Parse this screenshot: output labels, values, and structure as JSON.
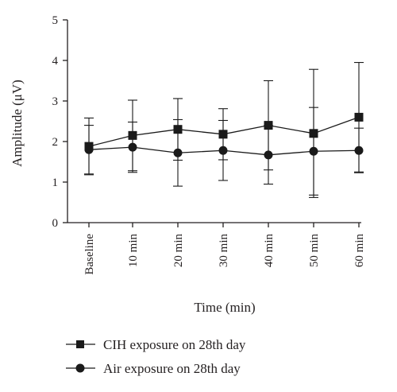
{
  "chart_data": {
    "type": "line",
    "categories": [
      "Baseline",
      "10 min",
      "20 min",
      "30 min",
      "40 min",
      "50 min",
      "60 min"
    ],
    "xlabel": "Time (min)",
    "ylabel": "Amplitude (μV)",
    "ylim": [
      0,
      5
    ],
    "yticks": [
      "0",
      "1",
      "2",
      "3",
      "4",
      "5"
    ],
    "grid": false,
    "legend_position": "bottom",
    "series": [
      {
        "name": "CIH exposure on 28th day",
        "marker": "square",
        "color": "#1a1a1a",
        "values": [
          1.88,
          2.15,
          2.3,
          2.18,
          2.4,
          2.2,
          2.6
        ],
        "error": [
          0.7,
          0.87,
          0.76,
          0.63,
          1.1,
          1.58,
          1.35
        ]
      },
      {
        "name": "Air exposure on 28th day",
        "marker": "circle",
        "color": "#1a1a1a",
        "values": [
          1.8,
          1.86,
          1.72,
          1.78,
          1.67,
          1.76,
          1.78
        ],
        "error": [
          0.6,
          0.62,
          0.82,
          0.74,
          0.72,
          1.08,
          0.55
        ]
      }
    ]
  }
}
